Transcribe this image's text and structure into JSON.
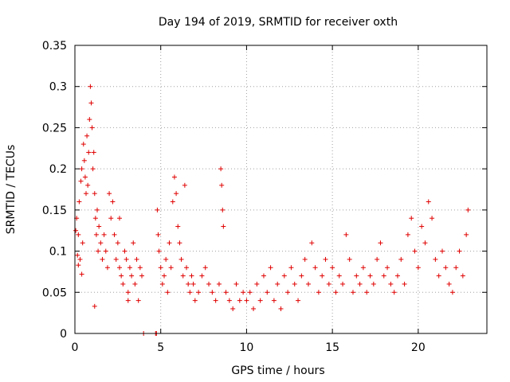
{
  "chart_data": {
    "type": "scatter",
    "title": "Day 194 of 2019, SRMTID for receiver oxth",
    "xlabel": "GPS time / hours",
    "ylabel": "SRMTID / TECUs",
    "xlim": [
      0,
      24
    ],
    "ylim": [
      0,
      0.35
    ],
    "xticks": [
      0,
      5,
      10,
      15,
      20
    ],
    "xtick_labels": [
      "0",
      "5",
      "10",
      "15",
      "20"
    ],
    "yticks": [
      0,
      0.05,
      0.1,
      0.15,
      0.2,
      0.25,
      0.3,
      0.35
    ],
    "ytick_labels": [
      "0",
      "0.05",
      "0.1",
      "0.15",
      "0.2",
      "0.25",
      "0.3",
      "0.35"
    ],
    "grid": true,
    "marker": "+",
    "series": [
      {
        "name": "SRMTID",
        "color": "#e00000",
        "points": [
          [
            0.05,
            0.125
          ],
          [
            0.1,
            0.14
          ],
          [
            0.15,
            0.095
          ],
          [
            0.2,
            0.12
          ],
          [
            0.25,
            0.16
          ],
          [
            0.3,
            0.09
          ],
          [
            0.35,
            0.185
          ],
          [
            0.4,
            0.2
          ],
          [
            0.45,
            0.11
          ],
          [
            0.5,
            0.23
          ],
          [
            0.55,
            0.21
          ],
          [
            0.6,
            0.19
          ],
          [
            0.65,
            0.17
          ],
          [
            0.7,
            0.24
          ],
          [
            0.75,
            0.18
          ],
          [
            0.8,
            0.22
          ],
          [
            0.85,
            0.26
          ],
          [
            0.9,
            0.3
          ],
          [
            0.95,
            0.28
          ],
          [
            1.0,
            0.25
          ],
          [
            1.05,
            0.2
          ],
          [
            1.1,
            0.22
          ],
          [
            1.15,
            0.17
          ],
          [
            1.2,
            0.14
          ],
          [
            1.25,
            0.12
          ],
          [
            1.3,
            0.15
          ],
          [
            1.35,
            0.1
          ],
          [
            1.4,
            0.13
          ],
          [
            1.5,
            0.11
          ],
          [
            1.6,
            0.09
          ],
          [
            1.7,
            0.12
          ],
          [
            1.8,
            0.1
          ],
          [
            1.9,
            0.08
          ],
          [
            2.0,
            0.17
          ],
          [
            2.1,
            0.14
          ],
          [
            2.2,
            0.16
          ],
          [
            2.3,
            0.12
          ],
          [
            2.4,
            0.09
          ],
          [
            2.5,
            0.11
          ],
          [
            2.6,
            0.08
          ],
          [
            2.7,
            0.07
          ],
          [
            2.8,
            0.06
          ],
          [
            2.9,
            0.1
          ],
          [
            3.0,
            0.09
          ],
          [
            3.1,
            0.05
          ],
          [
            3.2,
            0.08
          ],
          [
            3.3,
            0.07
          ],
          [
            3.4,
            0.11
          ],
          [
            3.5,
            0.06
          ],
          [
            3.6,
            0.09
          ],
          [
            3.7,
            0.04
          ],
          [
            3.8,
            0.08
          ],
          [
            3.9,
            0.07
          ],
          [
            1.15,
            0.033
          ],
          [
            0.4,
            0.072
          ],
          [
            0.2,
            0.083
          ],
          [
            2.6,
            0.14
          ],
          [
            3.1,
            0.04
          ],
          [
            4.0,
            0.0
          ],
          [
            4.7,
            0.0
          ],
          [
            4.75,
            0.0
          ],
          [
            4.8,
            0.15
          ],
          [
            4.85,
            0.12
          ],
          [
            4.9,
            0.1
          ],
          [
            5.0,
            0.08
          ],
          [
            5.1,
            0.06
          ],
          [
            5.2,
            0.07
          ],
          [
            5.3,
            0.09
          ],
          [
            5.4,
            0.05
          ],
          [
            5.5,
            0.11
          ],
          [
            5.6,
            0.08
          ],
          [
            5.7,
            0.16
          ],
          [
            5.8,
            0.19
          ],
          [
            5.9,
            0.17
          ],
          [
            6.0,
            0.13
          ],
          [
            6.1,
            0.11
          ],
          [
            6.2,
            0.09
          ],
          [
            6.3,
            0.07
          ],
          [
            6.4,
            0.18
          ],
          [
            6.5,
            0.08
          ],
          [
            6.6,
            0.06
          ],
          [
            6.7,
            0.05
          ],
          [
            6.8,
            0.07
          ],
          [
            6.9,
            0.06
          ],
          [
            7.0,
            0.04
          ],
          [
            7.2,
            0.05
          ],
          [
            7.4,
            0.07
          ],
          [
            7.6,
            0.08
          ],
          [
            7.8,
            0.06
          ],
          [
            8.0,
            0.05
          ],
          [
            8.2,
            0.04
          ],
          [
            8.4,
            0.06
          ],
          [
            8.5,
            0.2
          ],
          [
            8.55,
            0.18
          ],
          [
            8.6,
            0.15
          ],
          [
            8.65,
            0.13
          ],
          [
            8.8,
            0.05
          ],
          [
            9.0,
            0.04
          ],
          [
            9.2,
            0.03
          ],
          [
            9.4,
            0.06
          ],
          [
            9.6,
            0.04
          ],
          [
            9.8,
            0.05
          ],
          [
            10.0,
            0.04
          ],
          [
            10.2,
            0.05
          ],
          [
            10.4,
            0.03
          ],
          [
            10.6,
            0.06
          ],
          [
            10.8,
            0.04
          ],
          [
            11.0,
            0.07
          ],
          [
            11.2,
            0.05
          ],
          [
            11.4,
            0.08
          ],
          [
            11.6,
            0.04
          ],
          [
            11.8,
            0.06
          ],
          [
            12.0,
            0.03
          ],
          [
            12.2,
            0.07
          ],
          [
            12.4,
            0.05
          ],
          [
            12.6,
            0.08
          ],
          [
            12.8,
            0.06
          ],
          [
            13.0,
            0.04
          ],
          [
            13.2,
            0.07
          ],
          [
            13.4,
            0.09
          ],
          [
            13.6,
            0.06
          ],
          [
            13.8,
            0.11
          ],
          [
            14.0,
            0.08
          ],
          [
            14.2,
            0.05
          ],
          [
            14.4,
            0.07
          ],
          [
            14.6,
            0.09
          ],
          [
            14.8,
            0.06
          ],
          [
            15.0,
            0.08
          ],
          [
            15.2,
            0.05
          ],
          [
            15.4,
            0.07
          ],
          [
            15.6,
            0.06
          ],
          [
            15.8,
            0.12
          ],
          [
            16.0,
            0.09
          ],
          [
            16.2,
            0.05
          ],
          [
            16.4,
            0.07
          ],
          [
            16.6,
            0.06
          ],
          [
            16.8,
            0.08
          ],
          [
            17.0,
            0.05
          ],
          [
            17.2,
            0.07
          ],
          [
            17.4,
            0.06
          ],
          [
            17.6,
            0.09
          ],
          [
            17.8,
            0.11
          ],
          [
            18.0,
            0.07
          ],
          [
            18.2,
            0.08
          ],
          [
            18.4,
            0.06
          ],
          [
            18.6,
            0.05
          ],
          [
            18.8,
            0.07
          ],
          [
            19.0,
            0.09
          ],
          [
            19.2,
            0.06
          ],
          [
            19.4,
            0.12
          ],
          [
            19.6,
            0.14
          ],
          [
            19.8,
            0.1
          ],
          [
            20.0,
            0.08
          ],
          [
            20.2,
            0.13
          ],
          [
            20.4,
            0.11
          ],
          [
            20.6,
            0.16
          ],
          [
            20.8,
            0.14
          ],
          [
            21.0,
            0.09
          ],
          [
            21.2,
            0.07
          ],
          [
            21.4,
            0.1
          ],
          [
            21.6,
            0.08
          ],
          [
            21.8,
            0.06
          ],
          [
            22.0,
            0.05
          ],
          [
            22.2,
            0.08
          ],
          [
            22.4,
            0.1
          ],
          [
            22.6,
            0.07
          ],
          [
            22.8,
            0.12
          ],
          [
            22.9,
            0.15
          ]
        ]
      }
    ]
  }
}
